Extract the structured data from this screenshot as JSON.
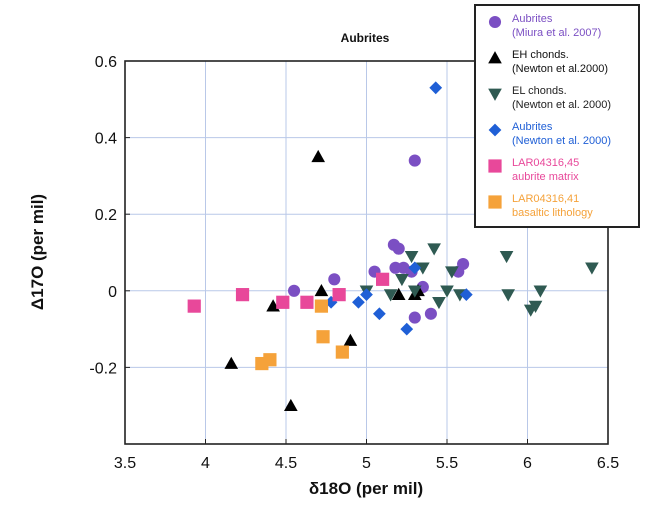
{
  "chart_data": {
    "type": "scatter",
    "title": "Aubrites",
    "xlabel": "δ18O (per mil)",
    "ylabel": "Δ17O (per mil)",
    "xlim": [
      3.5,
      6.5
    ],
    "ylim": [
      -0.4,
      0.6
    ],
    "xticks": [
      "3.5",
      "4",
      "4.5",
      "5",
      "5.5",
      "6",
      "6.5"
    ],
    "yticks": [
      "0.6",
      "0.4",
      "0.2",
      "0",
      "-0.2"
    ],
    "grid": true,
    "legend_position": "top-right",
    "series": [
      {
        "name": "Aubrites",
        "name_line2": "(Miura et al. 2007)",
        "color": "#7b4fc3",
        "text_color": "#7b4fc3",
        "marker": "circle",
        "points": [
          [
            4.55,
            0.0
          ],
          [
            4.8,
            0.03
          ],
          [
            5.05,
            0.05
          ],
          [
            5.17,
            0.12
          ],
          [
            5.2,
            0.11
          ],
          [
            5.18,
            0.06
          ],
          [
            5.23,
            0.06
          ],
          [
            5.28,
            0.05
          ],
          [
            5.3,
            0.34
          ],
          [
            5.3,
            -0.07
          ],
          [
            5.35,
            0.01
          ],
          [
            5.4,
            -0.06
          ],
          [
            5.57,
            0.05
          ],
          [
            5.6,
            0.07
          ]
        ]
      },
      {
        "name": "EH chonds.",
        "name_line2": "(Newton et al.2000)",
        "color": "#000000",
        "text_color": "#111111",
        "marker": "triangle-up",
        "points": [
          [
            4.16,
            -0.19
          ],
          [
            4.42,
            -0.04
          ],
          [
            4.53,
            -0.3
          ],
          [
            4.7,
            0.35
          ],
          [
            4.72,
            0.0
          ],
          [
            4.9,
            -0.13
          ],
          [
            5.2,
            -0.01
          ],
          [
            5.3,
            -0.01
          ],
          [
            5.32,
            0.0
          ]
        ]
      },
      {
        "name": "EL chonds.",
        "name_line2": "(Newton et al. 2000)",
        "color": "#2f5a52",
        "text_color": "#222222",
        "marker": "triangle-down",
        "points": [
          [
            5.0,
            0.0
          ],
          [
            5.15,
            -0.01
          ],
          [
            5.22,
            0.03
          ],
          [
            5.28,
            0.09
          ],
          [
            5.3,
            0.0
          ],
          [
            5.35,
            0.06
          ],
          [
            5.42,
            0.11
          ],
          [
            5.45,
            -0.03
          ],
          [
            5.5,
            0.0
          ],
          [
            5.53,
            0.05
          ],
          [
            5.58,
            -0.01
          ],
          [
            5.87,
            0.09
          ],
          [
            5.88,
            -0.01
          ],
          [
            6.02,
            -0.05
          ],
          [
            6.05,
            -0.04
          ],
          [
            6.08,
            0.0
          ],
          [
            6.4,
            0.06
          ]
        ]
      },
      {
        "name": "Aubrites",
        "name_line2": "(Newton et al. 2000)",
        "color": "#1f5fd6",
        "text_color": "#1f5fd6",
        "marker": "diamond",
        "points": [
          [
            4.78,
            -0.03
          ],
          [
            4.95,
            -0.03
          ],
          [
            5.0,
            -0.01
          ],
          [
            5.08,
            -0.06
          ],
          [
            5.25,
            -0.1
          ],
          [
            5.3,
            0.06
          ],
          [
            5.43,
            0.53
          ],
          [
            5.62,
            -0.01
          ]
        ]
      },
      {
        "name": "LAR04316,45",
        "name_line2": "aubrite matrix",
        "color": "#e8489a",
        "text_color": "#e8489a",
        "marker": "square",
        "points": [
          [
            3.93,
            -0.04
          ],
          [
            4.23,
            -0.01
          ],
          [
            4.48,
            -0.03
          ],
          [
            4.63,
            -0.03
          ],
          [
            4.83,
            -0.01
          ],
          [
            5.1,
            0.03
          ]
        ]
      },
      {
        "name": "LAR04316,41",
        "name_line2": "basaltic lithology",
        "color": "#f5a23a",
        "text_color": "#f5a23a",
        "marker": "square",
        "points": [
          [
            4.35,
            -0.19
          ],
          [
            4.4,
            -0.18
          ],
          [
            4.72,
            -0.04
          ],
          [
            4.73,
            -0.12
          ],
          [
            4.85,
            -0.16
          ]
        ]
      }
    ]
  }
}
